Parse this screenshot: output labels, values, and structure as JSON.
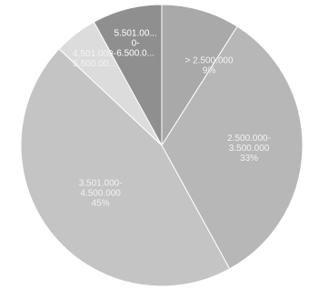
{
  "chart_data": {
    "type": "pie",
    "title": "",
    "slices": [
      {
        "label_lines": [
          "> 2.500.000",
          "9%"
        ],
        "value": 9,
        "color": "#a9a9a9"
      },
      {
        "label_lines": [
          "2.500.000-",
          "3.500.000",
          "33%"
        ],
        "value": 33,
        "color": "#b7b7b7"
      },
      {
        "label_lines": [
          "3.501.000-",
          "4.500.000",
          "45%"
        ],
        "value": 45,
        "color": "#c4c4c4"
      },
      {
        "label_lines": [
          "4.501.000-",
          "5.500.00..."
        ],
        "value": 5,
        "color": "#dcdcdc"
      },
      {
        "label_lines": [
          "5.501.00...",
          "0-",
          "6.500.0..."
        ],
        "value": 8,
        "color": "#8f8f8f"
      }
    ]
  }
}
